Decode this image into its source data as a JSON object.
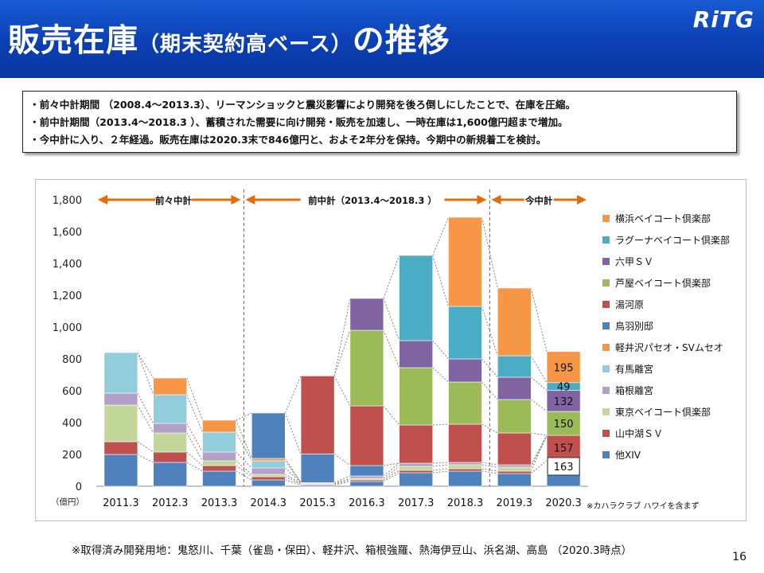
{
  "header": {
    "title_main": "販売在庫",
    "title_sub": "（期末契約高ベース）",
    "title_tail": "の推移",
    "logo": "RiTG",
    "bg_color": "#0b3fb3"
  },
  "summary": [
    "・前々中計期間 （2008.4～2013.3）、リーマンショックと震災影響により開発を後ろ倒しにしたことで、在庫を圧縮。",
    "・前中計期間（2013.4～2018.3 ）、蓄積された需要に向け開発・販売を加速し、一時在庫は1,600億円超まで増加。",
    "・今中計に入り、２年経過。販売在庫は2020.3末で846億円と、およそ2年分を保持。今期中の新規着工を検討。"
  ],
  "chart_data": {
    "type": "bar",
    "stacked": true,
    "categories": [
      "2011.3",
      "2012.3",
      "2013.3",
      "2014.3",
      "2015.3",
      "2016.3",
      "2017.3",
      "2018.3",
      "2019.3",
      "2020.3"
    ],
    "ylim": [
      0,
      1800
    ],
    "yticks": [
      "0",
      "200",
      "400",
      "600",
      "800",
      "1,000",
      "1,200",
      "1,400",
      "1,600",
      "1,800"
    ],
    "ylabel": "（億円）",
    "grid": false,
    "legend_position": "right",
    "category_note": "※カハラクラブ ハワイを含まず",
    "periods": [
      {
        "label": "前々中計"
      },
      {
        "label": "前中計（2013.4～2018.3 ）"
      },
      {
        "label": "今中計"
      }
    ],
    "series": [
      {
        "name": "他XIV",
        "color": "#4f81bd",
        "values": [
          200,
          150,
          95,
          40,
          8,
          30,
          85,
          95,
          80,
          163
        ]
      },
      {
        "name": "山中湖ＳＶ",
        "color": "#c0504d",
        "values": [
          80,
          65,
          35,
          20,
          5,
          10,
          15,
          15,
          15,
          157
        ]
      },
      {
        "name": "東京ベイコート倶楽部",
        "color": "#c4d79b",
        "values": [
          230,
          120,
          30,
          15,
          5,
          10,
          25,
          25,
          25,
          0
        ]
      },
      {
        "name": "箱根離宮",
        "color": "#b1a0c7",
        "values": [
          75,
          60,
          55,
          40,
          5,
          15,
          20,
          15,
          15,
          0
        ]
      },
      {
        "name": "有馬離宮",
        "color": "#92cddc",
        "values": [
          255,
          180,
          125,
          45,
          0,
          0,
          0,
          0,
          0,
          0
        ]
      },
      {
        "name": "軽井沢パセオ・SVムセオ",
        "color": "#f79646",
        "values": [
          0,
          105,
          75,
          15,
          0,
          0,
          0,
          0,
          0,
          0
        ]
      },
      {
        "name": "鳥羽別邸",
        "color": "#4f81bd",
        "values": [
          0,
          0,
          0,
          285,
          180,
          65,
          0,
          0,
          0,
          0
        ]
      },
      {
        "name": "湯河原",
        "color": "#c0504d",
        "values": [
          0,
          0,
          0,
          0,
          490,
          375,
          240,
          240,
          200,
          0
        ]
      },
      {
        "name": "芦屋ベイコート倶楽部",
        "color": "#9bbb59",
        "values": [
          0,
          0,
          0,
          0,
          0,
          475,
          360,
          265,
          210,
          150
        ]
      },
      {
        "name": "六甲ＳＶ",
        "color": "#8064a2",
        "values": [
          0,
          0,
          0,
          0,
          0,
          200,
          170,
          145,
          140,
          132
        ]
      },
      {
        "name": "ラグーナベイコート倶楽部",
        "color": "#4bacc6",
        "values": [
          0,
          0,
          0,
          0,
          0,
          0,
          535,
          330,
          135,
          49
        ]
      },
      {
        "name": "横浜ベイコート倶楽部",
        "color": "#f79646",
        "values": [
          0,
          0,
          0,
          0,
          0,
          0,
          0,
          560,
          425,
          195
        ]
      }
    ],
    "data_labels": [
      {
        "category": "2020.3",
        "series": "横浜ベイコート倶楽部",
        "text": "195"
      },
      {
        "category": "2020.3",
        "series": "ラグーナベイコート倶楽部",
        "text": "49"
      },
      {
        "category": "2020.3",
        "series": "六甲ＳＶ",
        "text": "132"
      },
      {
        "category": "2020.3",
        "series": "芦屋ベイコート倶楽部",
        "text": "150"
      },
      {
        "category": "2020.3",
        "series": "山中湖ＳＶ",
        "text": "157"
      },
      {
        "category": "2020.3",
        "series": "他XIV",
        "text": "163"
      }
    ]
  },
  "footnote": "※取得済み開発用地：鬼怒川、千葉（雀島・保田）、軽井沢、箱根強羅、熱海伊豆山、浜名湖、高島 （2020.3時点）",
  "page_number": "16"
}
